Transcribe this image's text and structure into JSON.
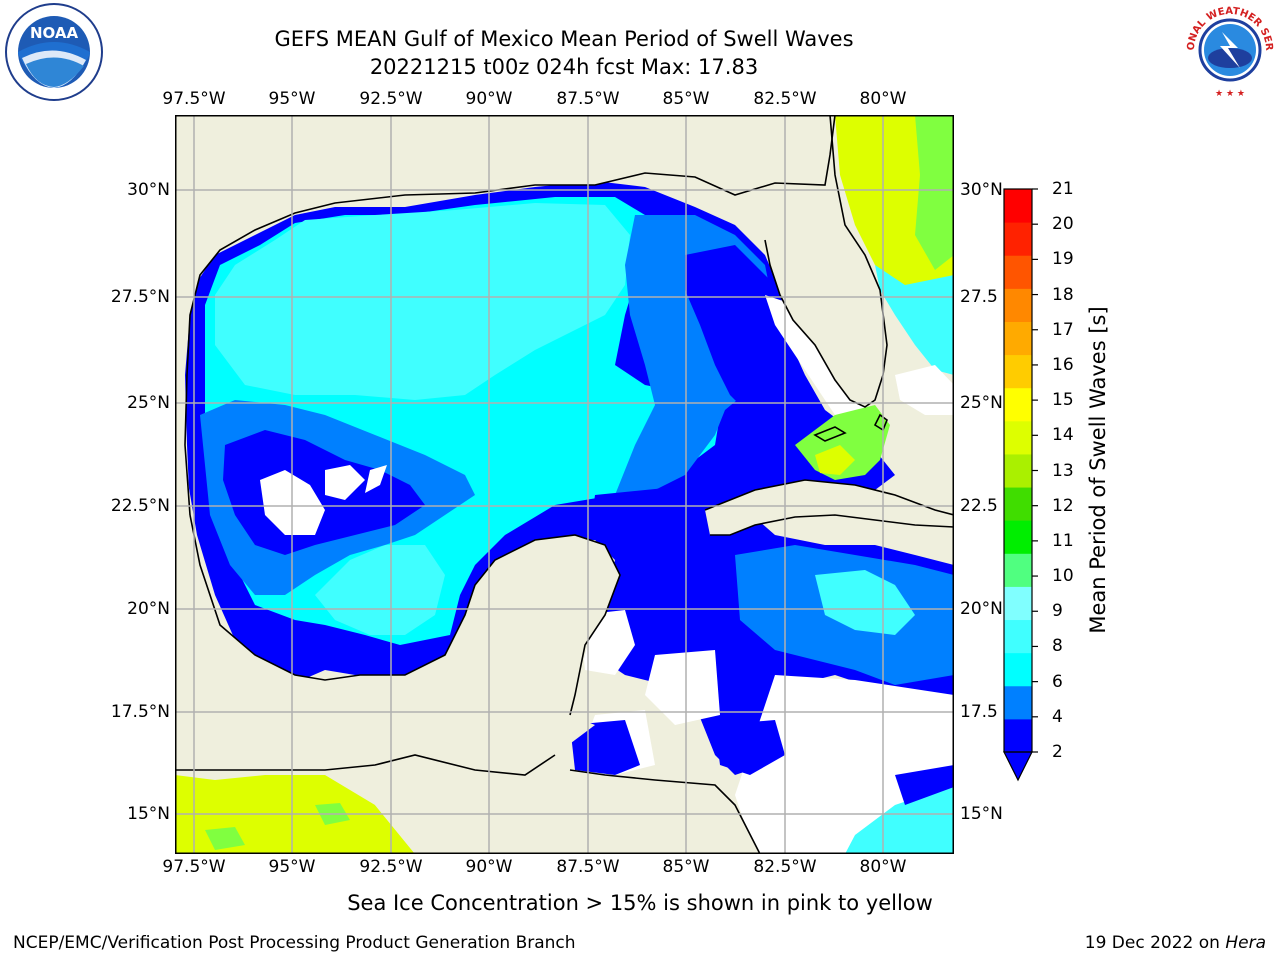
{
  "title": {
    "line1": "GEFS MEAN Gulf of Mexico Mean Period of Swell Waves",
    "line2": "20221215 t00z 024h fcst   Max: 17.83"
  },
  "map": {
    "lon_labels": [
      "97.5°W",
      "95°W",
      "92.5°W",
      "90°W",
      "87.5°W",
      "85°W",
      "82.5°W",
      "80°W"
    ],
    "lat_labels_left": [
      "30°N",
      "27.5°N",
      "25°N",
      "22.5°N",
      "20°N",
      "17.5°N",
      "15°N"
    ],
    "lat_labels_right": [
      "30°N",
      "27.5",
      "25°N",
      "22.5",
      "20°N",
      "17.5",
      "15°N"
    ],
    "land_color": "#efefdd",
    "grid_color": "#b0b0b0"
  },
  "colorbar": {
    "label": "Mean Period of Swell Waves [s]",
    "ticks": [
      "21",
      "20",
      "19",
      "18",
      "17",
      "16",
      "15",
      "14",
      "13",
      "12",
      "11",
      "10",
      "9",
      "8",
      "6",
      "4",
      "2"
    ],
    "colors": [
      "#0000ff",
      "#0080ff",
      "#00ffff",
      "#40ffff",
      "#80ffff",
      "#50ff80",
      "#00ee00",
      "#40dd00",
      "#aaf000",
      "#ddff00",
      "#ffff00",
      "#ffcc00",
      "#ffaa00",
      "#ff8800",
      "#ff5500",
      "#ff2200",
      "#ff0000"
    ]
  },
  "subtitle": "Sea Ice Concentration > 15% is shown in pink to yellow",
  "footer": {
    "left": "NCEP/EMC/Verification Post Processing Product Generation Branch",
    "right_date": "19 Dec 2022 on ",
    "right_host": "Hera"
  },
  "logos": {
    "noaa_text": "NOAA",
    "nws_text": "NATIONAL WEATHER SERVICE"
  }
}
